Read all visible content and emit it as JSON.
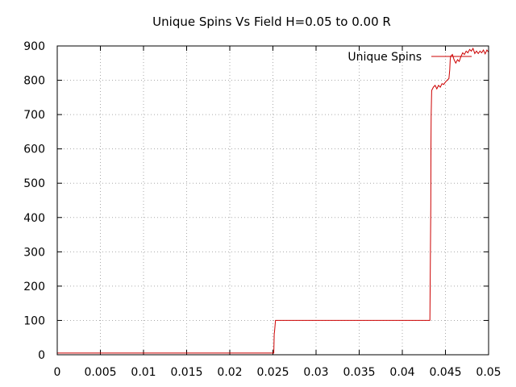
{
  "chart_data": {
    "type": "line",
    "title": "Unique Spins Vs Field H=0.05 to 0.00 R",
    "xlabel": "",
    "ylabel": "",
    "xlim": [
      0,
      0.05
    ],
    "ylim": [
      0,
      900
    ],
    "grid": true,
    "legend_position": "top-right",
    "x_ticks": [
      "0",
      "0.005",
      "0.01",
      "0.015",
      "0.02",
      "0.025",
      "0.03",
      "0.035",
      "0.04",
      "0.045",
      "0.05"
    ],
    "y_ticks": [
      "0",
      "100",
      "200",
      "300",
      "400",
      "500",
      "600",
      "700",
      "800",
      "900"
    ],
    "series": [
      {
        "name": "Unique Spins",
        "color": "#cc0000",
        "x": [
          0,
          0.0251,
          0.02515,
          0.0252,
          0.0253,
          0.0432,
          0.0433,
          0.04332,
          0.04335,
          0.0434,
          0.0436,
          0.0438,
          0.044,
          0.0442,
          0.0444,
          0.0446,
          0.0448,
          0.045,
          0.0452,
          0.0454,
          0.0455,
          0.04555,
          0.0456,
          0.0458,
          0.046,
          0.0462,
          0.0464,
          0.0466,
          0.0468,
          0.047,
          0.0472,
          0.0474,
          0.0476,
          0.0478,
          0.048,
          0.0482,
          0.0484,
          0.0486,
          0.0488,
          0.049,
          0.0492,
          0.0494,
          0.0496,
          0.0498,
          0.05
        ],
        "y": [
          5,
          5,
          60,
          70,
          100,
          100,
          430,
          600,
          700,
          770,
          780,
          785,
          775,
          785,
          780,
          790,
          788,
          795,
          800,
          805,
          830,
          860,
          870,
          875,
          860,
          850,
          860,
          855,
          870,
          880,
          875,
          885,
          880,
          890,
          885,
          893,
          878,
          885,
          878,
          885,
          880,
          888,
          877,
          888,
          882
        ]
      }
    ]
  }
}
